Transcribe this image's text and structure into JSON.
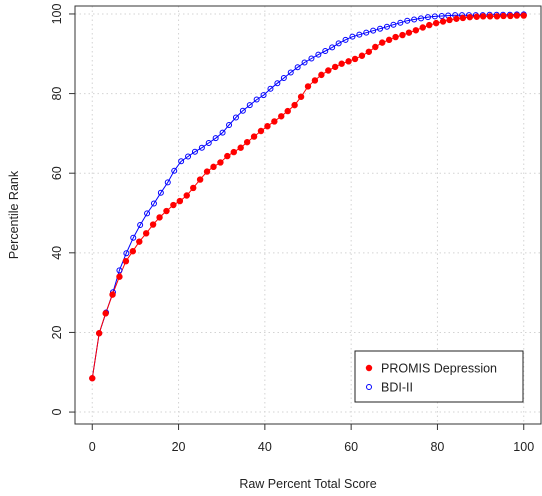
{
  "chart_data": {
    "type": "line",
    "title": "",
    "xlabel": "Raw Percent Total Score",
    "ylabel": "Percentile Rank",
    "xlim": [
      -4,
      104
    ],
    "ylim": [
      -3,
      102
    ],
    "xticks": [
      0,
      20,
      40,
      60,
      80,
      100
    ],
    "yticks": [
      0,
      20,
      40,
      60,
      80,
      100
    ],
    "grid": true,
    "legend_position": "bottom-right",
    "series": [
      {
        "name": "PROMIS Depression",
        "color": "#ff0000",
        "marker": "filled-circle",
        "x": [
          0,
          1.6,
          3.1,
          4.7,
          6.3,
          7.8,
          9.4,
          10.9,
          12.5,
          14.1,
          15.6,
          17.2,
          18.8,
          20.3,
          21.9,
          23.4,
          25.0,
          26.6,
          28.1,
          29.7,
          31.3,
          32.8,
          34.4,
          35.9,
          37.5,
          39.1,
          40.6,
          42.2,
          43.8,
          45.3,
          46.9,
          48.4,
          50.0,
          51.6,
          53.1,
          54.7,
          56.3,
          57.8,
          59.4,
          60.9,
          62.5,
          64.1,
          65.6,
          67.2,
          68.8,
          70.3,
          71.9,
          73.4,
          75.0,
          76.6,
          78.1,
          79.7,
          81.3,
          82.8,
          84.4,
          85.9,
          87.5,
          89.1,
          90.6,
          92.2,
          93.8,
          95.3,
          96.9,
          98.4,
          100
        ],
        "y": [
          8.5,
          19.8,
          24.8,
          29.5,
          34.0,
          37.9,
          40.4,
          42.8,
          44.9,
          47.1,
          48.9,
          50.5,
          52.0,
          53.0,
          54.4,
          56.3,
          58.4,
          60.4,
          61.6,
          62.7,
          64.3,
          65.3,
          66.4,
          67.8,
          69.2,
          70.6,
          71.8,
          73.0,
          74.3,
          75.6,
          77.1,
          79.2,
          81.8,
          83.3,
          84.7,
          85.8,
          86.7,
          87.5,
          88.1,
          88.7,
          89.5,
          90.5,
          91.7,
          92.8,
          93.5,
          94.2,
          94.7,
          95.3,
          95.9,
          96.6,
          97.2,
          97.7,
          98.1,
          98.5,
          98.8,
          99.0,
          99.2,
          99.3,
          99.4,
          99.4,
          99.4,
          99.5,
          99.5,
          99.6,
          99.6
        ]
      },
      {
        "name": "BDI-II",
        "color": "#0000ff",
        "marker": "open-circle",
        "x": [
          0,
          1.6,
          3.2,
          4.8,
          6.3,
          7.9,
          9.5,
          11.1,
          12.7,
          14.3,
          15.9,
          17.5,
          19.0,
          20.6,
          22.2,
          23.8,
          25.4,
          27.0,
          28.6,
          30.2,
          31.7,
          33.3,
          34.9,
          36.5,
          38.1,
          39.7,
          41.3,
          42.9,
          44.4,
          46.0,
          47.6,
          49.2,
          50.8,
          52.4,
          54.0,
          55.6,
          57.1,
          58.7,
          60.3,
          61.9,
          63.5,
          65.1,
          66.7,
          68.3,
          69.8,
          71.4,
          73.0,
          74.6,
          76.2,
          77.8,
          79.4,
          81.0,
          82.5,
          84.1,
          85.7,
          87.3,
          88.9,
          90.5,
          92.1,
          93.7,
          95.2,
          96.8,
          98.4,
          100
        ],
        "y": [
          8.5,
          19.8,
          25.0,
          30.1,
          35.6,
          39.9,
          43.8,
          47.0,
          49.9,
          52.4,
          55.1,
          57.7,
          60.6,
          63.0,
          64.2,
          65.4,
          66.4,
          67.6,
          68.8,
          70.2,
          72.1,
          74.0,
          75.7,
          77.1,
          78.5,
          79.6,
          81.2,
          82.6,
          83.9,
          85.3,
          86.6,
          87.8,
          88.8,
          89.8,
          90.7,
          91.6,
          92.6,
          93.5,
          94.3,
          94.8,
          95.3,
          95.8,
          96.3,
          96.8,
          97.3,
          97.8,
          98.3,
          98.6,
          98.9,
          99.2,
          99.4,
          99.5,
          99.6,
          99.7,
          99.7,
          99.7,
          99.7,
          99.7,
          99.8,
          99.8,
          99.8,
          99.8,
          99.9,
          99.9
        ]
      }
    ]
  }
}
